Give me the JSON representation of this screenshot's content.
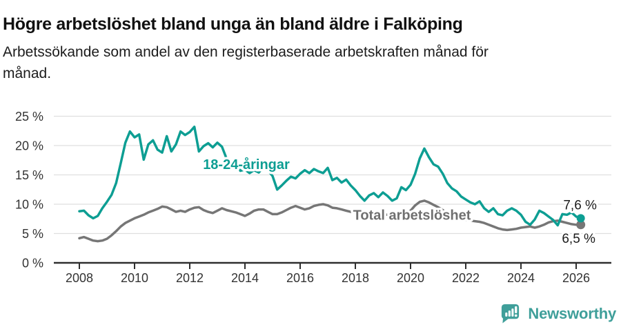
{
  "header": {
    "title": "Högre arbetslöshet bland unga än bland äldre i Falköping",
    "subtitle_line1": "Arbetssökande som andel av den registerbaserade arbetskraften månad för",
    "subtitle_line2": "månad."
  },
  "chart_data": {
    "type": "line",
    "title": "Högre arbetslöshet bland unga än bland äldre i Falköping",
    "subtitle": "Arbetssökande som andel av den registerbaserade arbetskraften månad för månad.",
    "grid": true,
    "legend_position": "inline-labels",
    "x_start": 2008.0,
    "x_step_years": 0.1666667,
    "xlim": [
      2007.1,
      2027.3
    ],
    "ylim": [
      0,
      26.5
    ],
    "y_ticks": [
      0,
      5,
      10,
      15,
      20,
      25
    ],
    "y_tick_suffix": " %",
    "x_tick_years": [
      2008,
      2010,
      2012,
      2014,
      2016,
      2018,
      2020,
      2022,
      2024,
      2026
    ],
    "x_tick_labels": [
      "2008",
      "2010",
      "2012",
      "2014",
      "2016",
      "2018",
      "2020",
      "2022",
      "2024",
      "2026"
    ],
    "colors": {
      "grid": "#dfdfdf",
      "axis": "#2e2e2e",
      "tick_text": "#333333",
      "end_label_text": "#1a1a1a"
    },
    "series": [
      {
        "name": "Total arbetslöshet",
        "color": "#767676",
        "label_color": "#6f6f6f",
        "label_pos": {
          "year": 2020.05,
          "pct": 8.2
        },
        "end_label": "6,5 %",
        "end_label_side": "below",
        "end_value": 6.5,
        "values": [
          4.2,
          4.4,
          4.1,
          3.8,
          3.7,
          3.8,
          4.1,
          4.7,
          5.4,
          6.2,
          6.8,
          7.2,
          7.6,
          7.9,
          8.2,
          8.6,
          8.9,
          9.2,
          9.6,
          9.5,
          9.1,
          8.7,
          8.9,
          8.7,
          9.1,
          9.4,
          9.5,
          9.0,
          8.7,
          8.5,
          8.9,
          9.3,
          9.0,
          8.8,
          8.6,
          8.3,
          8.0,
          8.4,
          8.9,
          9.1,
          9.1,
          8.7,
          8.3,
          8.3,
          8.6,
          9.0,
          9.4,
          9.7,
          9.4,
          9.1,
          9.3,
          9.7,
          9.9,
          10.0,
          9.8,
          9.4,
          9.3,
          9.1,
          8.9,
          8.7,
          8.6,
          8.5,
          8.4,
          8.4,
          8.3,
          8.2,
          8.2,
          8.2,
          8.3,
          8.4,
          8.5,
          8.6,
          8.9,
          9.8,
          10.4,
          10.6,
          10.3,
          9.9,
          9.5,
          9.0,
          8.5,
          8.0,
          7.7,
          7.5,
          7.3,
          7.2,
          7.1,
          7.0,
          6.8,
          6.5,
          6.2,
          5.9,
          5.7,
          5.6,
          5.7,
          5.8,
          6.0,
          6.1,
          6.2,
          6.0,
          6.2,
          6.5,
          6.9,
          7.1,
          7.2,
          7.0,
          6.8,
          6.6,
          6.5,
          6.5
        ]
      },
      {
        "name": "18-24-åringar",
        "color": "#0d9e93",
        "label_color": "#0d9e93",
        "label_pos": {
          "year": 2014.05,
          "pct": 16.8
        },
        "end_label": "7,6 %",
        "end_label_side": "above",
        "end_value": 7.6,
        "values": [
          8.8,
          8.9,
          8.1,
          7.6,
          8.0,
          9.3,
          10.4,
          11.6,
          13.6,
          17.0,
          20.5,
          22.4,
          21.4,
          21.9,
          17.6,
          20.2,
          20.9,
          19.3,
          18.8,
          21.6,
          19.0,
          20.2,
          22.4,
          21.8,
          22.3,
          23.2,
          19.0,
          19.9,
          20.4,
          19.7,
          20.5,
          19.8,
          17.8,
          16.5,
          16.9,
          15.7,
          15.9,
          15.3,
          15.8,
          15.4,
          16.3,
          15.8,
          14.8,
          12.5,
          13.2,
          14.0,
          14.7,
          14.4,
          15.2,
          15.8,
          15.3,
          16.0,
          15.6,
          15.3,
          16.2,
          14.1,
          14.5,
          13.7,
          14.2,
          13.2,
          12.4,
          11.4,
          10.6,
          11.5,
          11.9,
          11.2,
          12.0,
          11.4,
          10.6,
          11.0,
          12.9,
          12.4,
          13.3,
          15.2,
          17.8,
          19.5,
          18.0,
          16.8,
          16.4,
          15.2,
          13.6,
          12.7,
          12.2,
          11.3,
          10.8,
          10.3,
          10.0,
          10.5,
          9.3,
          8.7,
          9.3,
          8.3,
          8.1,
          8.9,
          9.3,
          8.9,
          8.2,
          7.0,
          6.5,
          7.4,
          8.9,
          8.5,
          7.9,
          7.3,
          6.4,
          8.3,
          8.2,
          8.6,
          7.9,
          7.6
        ]
      }
    ]
  },
  "footer": {
    "brand": "Newsworthy",
    "logo_color": "#3f9f9a"
  }
}
